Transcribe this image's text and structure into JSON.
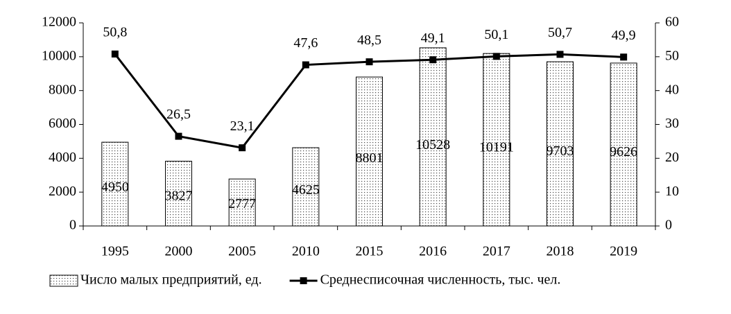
{
  "chart_data": {
    "type": "bar",
    "categories": [
      "1995",
      "2000",
      "2005",
      "2010",
      "2015",
      "2016",
      "2017",
      "2018",
      "2019"
    ],
    "series": [
      {
        "name": "Число малых предприятий, ед.",
        "type": "bar",
        "color": "#000000",
        "values": [
          4950,
          3827,
          2777,
          4625,
          8801,
          10528,
          10191,
          9703,
          9626
        ]
      },
      {
        "name": "Среднесписочная численность, тыс. чел.",
        "type": "line",
        "axis": "y2",
        "color": "#000000",
        "values": [
          50.8,
          26.5,
          23.1,
          47.6,
          48.5,
          49.1,
          50.1,
          50.7,
          49.9
        ],
        "value_labels": [
          "50,8",
          "26,5",
          "23,1",
          "47,6",
          "48,5",
          "49,1",
          "50,1",
          "50,7",
          "49,9"
        ]
      }
    ],
    "ylim": [
      0,
      12000
    ],
    "yticks": [
      0,
      2000,
      4000,
      6000,
      8000,
      10000,
      12000
    ],
    "y2lim": [
      0,
      60
    ],
    "y2ticks": [
      0,
      10,
      20,
      30,
      40,
      50,
      60
    ],
    "grid": false,
    "legend": "bottom"
  }
}
